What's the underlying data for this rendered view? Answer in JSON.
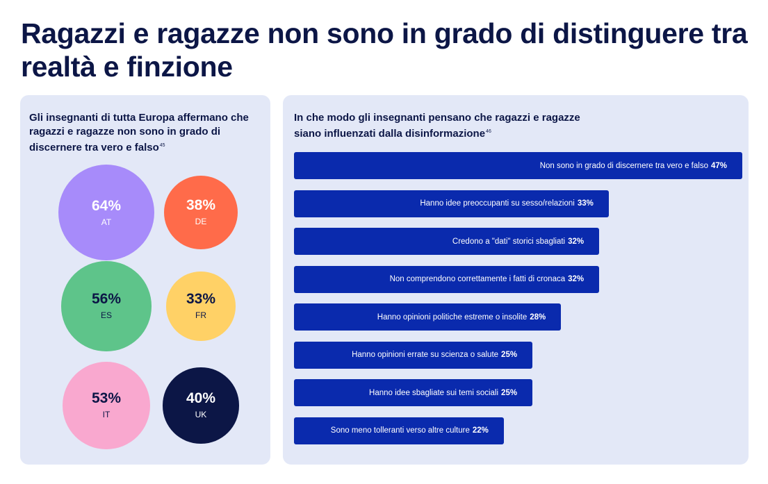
{
  "title": "Ragazzi e ragazze non sono in grado di distinguere tra realtà e finzione",
  "colors": {
    "panel_bg": "#e3e8f7",
    "bar": "#0a2aad",
    "text_dark": "#0c1646"
  },
  "chart_data": [
    {
      "type": "bubble",
      "title": "Gli insegnanti di tutta Europa affermano che ragazzi e ragazze non sono in grado di discernere tra vero e falso",
      "title_note": "45",
      "unit": "%",
      "items": [
        {
          "country": "AT",
          "value": 64,
          "label": "64%",
          "color": "#a78bfa",
          "text_color": "#ffffff"
        },
        {
          "country": "DE",
          "value": 38,
          "label": "38%",
          "color": "#ff6b4a",
          "text_color": "#ffffff"
        },
        {
          "country": "ES",
          "value": 56,
          "label": "56%",
          "color": "#5ec48a",
          "text_color": "#0c1646"
        },
        {
          "country": "FR",
          "value": 33,
          "label": "33%",
          "color": "#ffd166",
          "text_color": "#0c1646"
        },
        {
          "country": "IT",
          "value": 53,
          "label": "53%",
          "color": "#f9a8cf",
          "text_color": "#0c1646"
        },
        {
          "country": "UK",
          "value": 40,
          "label": "40%",
          "color": "#0c1646",
          "text_color": "#ffffff"
        }
      ]
    },
    {
      "type": "bar",
      "orientation": "horizontal",
      "title": "In che modo gli insegnanti pensano che ragazzi e ragazze siano influenzati dalla disinformazione",
      "title_note": "46",
      "unit": "%",
      "categories": [
        "Non sono in grado di discernere tra vero e falso",
        "Hanno idee preoccupanti su sesso/relazioni",
        "Credono a \"dati\" storici sbagliati",
        "Non comprendono correttamente i fatti di cronaca",
        "Hanno opinioni politiche estreme o insolite",
        "Hanno opinioni errate su scienza o salute",
        "Hanno idee sbagliate sui temi sociali",
        "Sono meno tolleranti verso altre culture"
      ],
      "values": [
        47,
        33,
        32,
        32,
        28,
        25,
        25,
        22
      ],
      "value_labels": [
        "47%",
        "33%",
        "32%",
        "32%",
        "28%",
        "25%",
        "25%",
        "22%"
      ],
      "xlim": [
        0,
        47
      ]
    }
  ]
}
